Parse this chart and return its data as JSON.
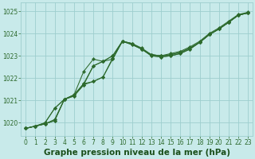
{
  "title": "Graphe pression niveau de la mer (hPa)",
  "bg_color": "#c8eaea",
  "grid_color": "#9ecece",
  "line_color": "#2d6a2d",
  "marker": "D",
  "markersize": 2.2,
  "xlabel_color": "#1a4f1a",
  "ylabel_ticks": [
    1020,
    1021,
    1022,
    1023,
    1024,
    1025
  ],
  "xlim": [
    -0.5,
    23.5
  ],
  "ylim": [
    1019.4,
    1025.4
  ],
  "series": [
    [
      1019.75,
      1019.85,
      1020.0,
      1020.65,
      1021.05,
      1021.25,
      1021.75,
      1022.55,
      1022.75,
      1022.85,
      1023.65,
      1023.55,
      1023.3,
      1023.05,
      1023.0,
      1023.05,
      1023.15,
      1023.35,
      1023.6,
      1023.95,
      1024.2,
      1024.5,
      1024.82,
      1024.92
    ],
    [
      1019.75,
      1019.85,
      1020.0,
      1020.65,
      1021.05,
      1021.25,
      1021.75,
      1021.85,
      1022.05,
      1022.9,
      1023.65,
      1023.55,
      1023.3,
      1023.05,
      1023.0,
      1023.05,
      1023.15,
      1023.35,
      1023.6,
      1023.95,
      1024.2,
      1024.5,
      1024.82,
      1024.92
    ],
    [
      1019.75,
      1019.85,
      1019.95,
      1020.1,
      1021.05,
      1021.2,
      1021.7,
      1021.85,
      1022.05,
      1022.85,
      1023.65,
      1023.55,
      1023.35,
      1023.05,
      1023.0,
      1023.1,
      1023.2,
      1023.4,
      1023.65,
      1024.0,
      1024.25,
      1024.55,
      1024.85,
      1024.95
    ],
    [
      1019.75,
      1019.85,
      1019.95,
      1020.1,
      1021.05,
      1021.2,
      1021.7,
      1022.55,
      1022.75,
      1023.0,
      1023.65,
      1023.5,
      1023.3,
      1023.0,
      1022.95,
      1023.0,
      1023.1,
      1023.3,
      1023.6,
      1023.95,
      1024.2,
      1024.5,
      1024.82,
      1024.92
    ],
    [
      1019.75,
      1019.85,
      1019.95,
      1020.15,
      1021.05,
      1021.25,
      1022.3,
      1022.85,
      1022.75,
      1023.0,
      1023.65,
      1023.5,
      1023.3,
      1023.0,
      1022.95,
      1023.0,
      1023.1,
      1023.3,
      1023.6,
      1023.95,
      1024.2,
      1024.5,
      1024.82,
      1024.92
    ]
  ],
  "xticks": [
    0,
    1,
    2,
    3,
    4,
    5,
    6,
    7,
    8,
    9,
    10,
    11,
    12,
    13,
    14,
    15,
    16,
    17,
    18,
    19,
    20,
    21,
    22,
    23
  ],
  "tick_fontsize": 5.5,
  "label_fontsize": 7.5,
  "linewidth": 0.75
}
